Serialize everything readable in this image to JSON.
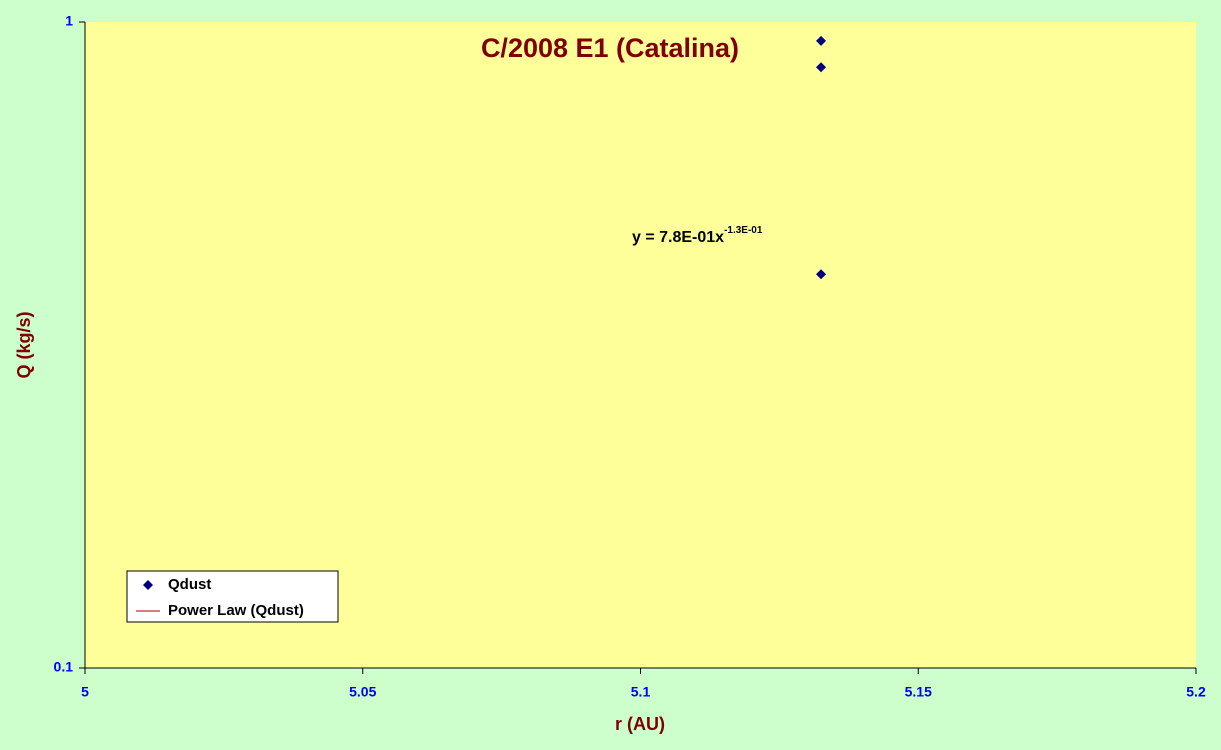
{
  "chart_data": {
    "type": "scatter",
    "title": "C/2008 E1 (Catalina)",
    "x_label": "r (AU)",
    "y_label": "Q (kg/s)",
    "series": [
      {
        "name": "Qdust",
        "color": "#000080",
        "x": [
          5.1325,
          5.1325,
          5.1325
        ],
        "values": [
          0.935,
          0.851,
          0.407
        ]
      }
    ],
    "trendline": {
      "name": "Power Law (Qdust)",
      "color": "#a00000"
    },
    "annotation": {
      "text": "y = 7.8E-01x",
      "exponent": "-1.3E-01"
    },
    "xlim": [
      5,
      5.2
    ],
    "xticks": [
      5,
      5.05,
      5.1,
      5.15,
      5.2
    ],
    "ylim": [
      0.1,
      1
    ],
    "yticks": [
      0.1,
      1
    ],
    "ylog": true,
    "grid": false,
    "legend": "bottom-left"
  }
}
